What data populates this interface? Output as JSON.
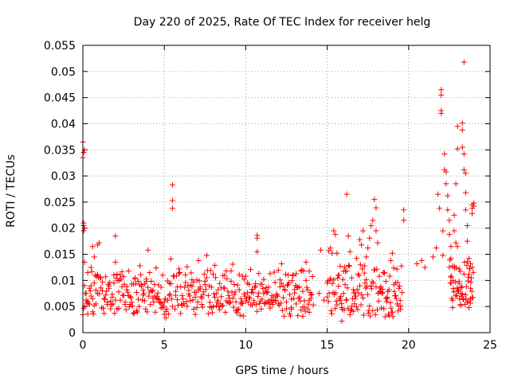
{
  "chart_data": {
    "type": "scatter",
    "title": "Day 220 of 2025, Rate Of TEC Index for receiver helg",
    "xlabel": "GPS time / hours",
    "ylabel": "ROTI / TECUs",
    "xlim": [
      0,
      25
    ],
    "ylim": [
      0,
      0.055
    ],
    "xticks": [
      0,
      5,
      10,
      15,
      20,
      25
    ],
    "xtick_labels": [
      "0",
      "5",
      "10",
      "15",
      "20",
      "25"
    ],
    "yticks": [
      0,
      0.005,
      0.01,
      0.015,
      0.02,
      0.025,
      0.03,
      0.035,
      0.04,
      0.045,
      0.05,
      0.055
    ],
    "ytick_labels": [
      "0",
      "0.005",
      "0.01",
      "0.015",
      "0.02",
      "0.025",
      "0.03",
      "0.035",
      "0.04",
      "0.045",
      "0.05",
      "0.055"
    ],
    "grid": true,
    "marker": "+",
    "color": "#ff0000",
    "series": [
      {
        "name": "ROTI",
        "points": [
          [
            0.0,
            0.0335
          ],
          [
            0.0,
            0.0365
          ],
          [
            0.05,
            0.0345
          ],
          [
            0.1,
            0.035
          ],
          [
            0.05,
            0.021
          ],
          [
            0.05,
            0.0205
          ],
          [
            0.1,
            0.02
          ],
          [
            0.05,
            0.0195
          ],
          [
            0.1,
            0.0135
          ],
          [
            0.1,
            0.009
          ],
          [
            0.2,
            0.0075
          ],
          [
            0.3,
            0.006
          ],
          [
            0.4,
            0.0085
          ],
          [
            0.5,
            0.007
          ],
          [
            0.6,
            0.0065
          ],
          [
            0.7,
            0.0095
          ],
          [
            0.8,
            0.0055
          ],
          [
            0.9,
            0.0075
          ],
          [
            0.3,
            0.0115
          ],
          [
            0.5,
            0.0125
          ],
          [
            0.6,
            0.0165
          ],
          [
            0.7,
            0.0145
          ],
          [
            0.9,
            0.0168
          ],
          [
            1.0,
            0.0172
          ],
          [
            1.1,
            0.0105
          ],
          [
            1.2,
            0.008
          ],
          [
            1.3,
            0.0065
          ],
          [
            1.4,
            0.0072
          ],
          [
            1.5,
            0.0058
          ],
          [
            1.6,
            0.0085
          ],
          [
            1.7,
            0.006
          ],
          [
            1.8,
            0.0068
          ],
          [
            1.9,
            0.0095
          ],
          [
            2.0,
            0.0185
          ],
          [
            2.0,
            0.0135
          ],
          [
            2.1,
            0.0112
          ],
          [
            2.2,
            0.0078
          ],
          [
            2.3,
            0.0062
          ],
          [
            2.4,
            0.0088
          ],
          [
            2.5,
            0.0071
          ],
          [
            2.6,
            0.0054
          ],
          [
            2.7,
            0.0082
          ],
          [
            2.8,
            0.0118
          ],
          [
            2.9,
            0.0069
          ],
          [
            3.0,
            0.0058
          ],
          [
            3.1,
            0.0093
          ],
          [
            3.2,
            0.0105
          ],
          [
            3.3,
            0.0077
          ],
          [
            3.4,
            0.0064
          ],
          [
            3.5,
            0.0128
          ],
          [
            3.6,
            0.0089
          ],
          [
            3.7,
            0.0072
          ],
          [
            3.8,
            0.0061
          ],
          [
            3.9,
            0.0098
          ],
          [
            4.0,
            0.0158
          ],
          [
            4.1,
            0.0115
          ],
          [
            4.2,
            0.0081
          ],
          [
            4.3,
            0.0066
          ],
          [
            4.4,
            0.0092
          ],
          [
            4.5,
            0.0124
          ],
          [
            4.6,
            0.0076
          ],
          [
            4.7,
            0.0059
          ],
          [
            4.8,
            0.0087
          ],
          [
            4.9,
            0.0048
          ],
          [
            5.0,
            0.0035
          ],
          [
            5.1,
            0.0028
          ],
          [
            5.2,
            0.0062
          ],
          [
            5.3,
            0.0095
          ],
          [
            5.4,
            0.0141
          ],
          [
            5.5,
            0.0283
          ],
          [
            5.5,
            0.0253
          ],
          [
            5.5,
            0.0238
          ],
          [
            5.6,
            0.0108
          ],
          [
            5.7,
            0.0079
          ],
          [
            5.8,
            0.0063
          ],
          [
            5.9,
            0.0122
          ],
          [
            6.0,
            0.0088
          ],
          [
            6.1,
            0.0071
          ],
          [
            6.2,
            0.0055
          ],
          [
            6.3,
            0.0096
          ],
          [
            6.4,
            0.0126
          ],
          [
            6.5,
            0.0074
          ],
          [
            6.6,
            0.0061
          ],
          [
            6.7,
            0.0089
          ],
          [
            6.8,
            0.0045
          ],
          [
            6.9,
            0.0068
          ],
          [
            7.0,
            0.0101
          ],
          [
            7.1,
            0.0138
          ],
          [
            7.2,
            0.0084
          ],
          [
            7.3,
            0.0066
          ],
          [
            7.4,
            0.0078
          ],
          [
            7.5,
            0.0092
          ],
          [
            7.6,
            0.0148
          ],
          [
            7.7,
            0.0071
          ],
          [
            7.8,
            0.0058
          ],
          [
            7.9,
            0.0087
          ],
          [
            8.0,
            0.0112
          ],
          [
            8.1,
            0.0129
          ],
          [
            8.2,
            0.0075
          ],
          [
            8.3,
            0.0062
          ],
          [
            8.4,
            0.0094
          ],
          [
            8.5,
            0.0069
          ],
          [
            8.6,
            0.0052
          ],
          [
            8.7,
            0.0085
          ],
          [
            8.8,
            0.0118
          ],
          [
            8.9,
            0.0079
          ],
          [
            9.0,
            0.0066
          ],
          [
            9.1,
            0.0098
          ],
          [
            9.2,
            0.0131
          ],
          [
            9.3,
            0.0073
          ],
          [
            9.4,
            0.0059
          ],
          [
            9.5,
            0.0091
          ],
          [
            9.6,
            0.0082
          ],
          [
            9.7,
            0.0065
          ],
          [
            9.8,
            0.0108
          ],
          [
            9.9,
            0.0074
          ],
          [
            10.0,
            0.0061
          ],
          [
            10.1,
            0.0095
          ],
          [
            10.2,
            0.0068
          ],
          [
            10.3,
            0.0121
          ],
          [
            10.4,
            0.0083
          ],
          [
            10.5,
            0.0057
          ],
          [
            10.6,
            0.0089
          ],
          [
            10.7,
            0.0186
          ],
          [
            10.7,
            0.0181
          ],
          [
            10.7,
            0.0155
          ],
          [
            10.8,
            0.0076
          ],
          [
            10.9,
            0.0093
          ],
          [
            11.0,
            0.0064
          ],
          [
            11.1,
            0.0102
          ],
          [
            11.2,
            0.0079
          ],
          [
            11.3,
            0.0058
          ],
          [
            11.4,
            0.0087
          ],
          [
            11.5,
            0.0113
          ],
          [
            11.6,
            0.0071
          ],
          [
            11.7,
            0.0062
          ],
          [
            11.8,
            0.0096
          ],
          [
            11.9,
            0.0074
          ],
          [
            12.0,
            0.0056
          ],
          [
            12.1,
            0.0088
          ],
          [
            12.2,
            0.0132
          ],
          [
            12.3,
            0.0067
          ],
          [
            12.4,
            0.0081
          ],
          [
            12.5,
            0.0059
          ],
          [
            12.6,
            0.0092
          ],
          [
            12.7,
            0.0073
          ],
          [
            12.8,
            0.0064
          ],
          [
            12.9,
            0.0109
          ],
          [
            13.0,
            0.0076
          ],
          [
            13.1,
            0.0055
          ],
          [
            13.2,
            0.0086
          ],
          [
            13.3,
            0.0068
          ],
          [
            13.4,
            0.0118
          ],
          [
            13.5,
            0.0079
          ],
          [
            13.6,
            0.0061
          ],
          [
            13.7,
            0.0135
          ],
          [
            13.8,
            0.0082
          ],
          [
            13.9,
            0.0062
          ],
          [
            14.0,
            0.0072
          ],
          [
            13.5,
            0.0049
          ],
          [
            13.9,
            0.0039
          ],
          [
            12.8,
            0.0045
          ],
          [
            14.5,
            0.0075
          ],
          [
            14.6,
            0.0158
          ],
          [
            14.8,
            0.0062
          ],
          [
            15.0,
            0.0095
          ],
          [
            15.1,
            0.0157
          ],
          [
            15.2,
            0.0162
          ],
          [
            15.3,
            0.0152
          ],
          [
            15.4,
            0.0195
          ],
          [
            15.5,
            0.0188
          ],
          [
            15.6,
            0.0152
          ],
          [
            15.7,
            0.0089
          ],
          [
            15.8,
            0.0062
          ],
          [
            15.9,
            0.0048
          ],
          [
            15.9,
            0.0022
          ],
          [
            16.0,
            0.0075
          ],
          [
            16.1,
            0.0092
          ],
          [
            16.2,
            0.0118
          ],
          [
            16.2,
            0.0265
          ],
          [
            16.3,
            0.0185
          ],
          [
            16.4,
            0.0155
          ],
          [
            16.5,
            0.0105
          ],
          [
            16.6,
            0.0082
          ],
          [
            16.7,
            0.0065
          ],
          [
            16.8,
            0.0142
          ],
          [
            16.9,
            0.0112
          ],
          [
            17.0,
            0.0178
          ],
          [
            17.1,
            0.0168
          ],
          [
            17.2,
            0.0195
          ],
          [
            17.3,
            0.0128
          ],
          [
            17.4,
            0.0145
          ],
          [
            17.5,
            0.0162
          ],
          [
            17.6,
            0.0181
          ],
          [
            17.7,
            0.0205
          ],
          [
            17.8,
            0.0215
          ],
          [
            17.9,
            0.0255
          ],
          [
            18.0,
            0.0239
          ],
          [
            18.0,
            0.0195
          ],
          [
            18.1,
            0.0172
          ],
          [
            18.2,
            0.0108
          ],
          [
            18.3,
            0.0088
          ],
          [
            18.4,
            0.0075
          ],
          [
            18.5,
            0.0115
          ],
          [
            18.6,
            0.0098
          ],
          [
            18.7,
            0.0065
          ],
          [
            18.8,
            0.0082
          ],
          [
            18.9,
            0.0138
          ],
          [
            19.0,
            0.0152
          ],
          [
            19.1,
            0.0092
          ],
          [
            19.2,
            0.0071
          ],
          [
            19.3,
            0.0055
          ],
          [
            19.4,
            0.0085
          ],
          [
            19.5,
            0.0045
          ],
          [
            19.7,
            0.0235
          ],
          [
            19.7,
            0.0215
          ],
          [
            20.5,
            0.0132
          ],
          [
            20.8,
            0.0138
          ],
          [
            21.0,
            0.0125
          ],
          [
            21.5,
            0.0145
          ],
          [
            21.7,
            0.0162
          ],
          [
            21.8,
            0.0265
          ],
          [
            21.9,
            0.0238
          ],
          [
            22.0,
            0.0465
          ],
          [
            22.0,
            0.0455
          ],
          [
            22.0,
            0.0425
          ],
          [
            22.0,
            0.042
          ],
          [
            22.1,
            0.0195
          ],
          [
            22.1,
            0.0148
          ],
          [
            22.2,
            0.0342
          ],
          [
            22.2,
            0.0312
          ],
          [
            22.3,
            0.0308
          ],
          [
            22.3,
            0.0285
          ],
          [
            22.4,
            0.0262
          ],
          [
            22.4,
            0.0235
          ],
          [
            22.5,
            0.0215
          ],
          [
            22.5,
            0.0188
          ],
          [
            22.6,
            0.0165
          ],
          [
            22.6,
            0.0142
          ],
          [
            22.6,
            0.0095
          ],
          [
            22.7,
            0.0062
          ],
          [
            22.7,
            0.0048
          ],
          [
            22.8,
            0.0225
          ],
          [
            22.8,
            0.0195
          ],
          [
            22.9,
            0.0172
          ],
          [
            22.9,
            0.0285
          ],
          [
            23.0,
            0.0395
          ],
          [
            23.0,
            0.0352
          ],
          [
            23.0,
            0.0165
          ],
          [
            23.1,
            0.0122
          ],
          [
            23.1,
            0.0098
          ],
          [
            23.2,
            0.0075
          ],
          [
            23.2,
            0.0052
          ],
          [
            23.3,
            0.0401
          ],
          [
            23.3,
            0.0388
          ],
          [
            23.3,
            0.0355
          ],
          [
            23.4,
            0.0518
          ],
          [
            23.4,
            0.0342
          ],
          [
            23.4,
            0.0312
          ],
          [
            23.5,
            0.0305
          ],
          [
            23.5,
            0.0268
          ],
          [
            23.5,
            0.0235
          ],
          [
            23.6,
            0.0205
          ],
          [
            23.6,
            0.0175
          ],
          [
            23.7,
            0.0142
          ],
          [
            23.7,
            0.0112
          ],
          [
            23.8,
            0.0085
          ],
          [
            23.8,
            0.0065
          ],
          [
            23.9,
            0.0245
          ],
          [
            23.9,
            0.0238
          ],
          [
            23.9,
            0.0228
          ],
          [
            24.0,
            0.0248
          ],
          [
            24.0,
            0.0242
          ],
          [
            23.7,
            0.0048
          ],
          [
            23.6,
            0.0058
          ],
          [
            23.8,
            0.0132
          ],
          [
            23.9,
            0.0125
          ]
        ],
        "dense_band": {
          "segments": [
            {
              "x_range": [
                0.0,
                14.2
              ],
              "y_range": [
                0.003,
                0.012
              ],
              "step": 0.05
            },
            {
              "x_range": [
                15.0,
                19.6
              ],
              "y_range": [
                0.003,
                0.013
              ],
              "step": 0.04
            },
            {
              "x_range": [
                22.5,
                24.0
              ],
              "y_range": [
                0.005,
                0.014
              ],
              "step": 0.03
            }
          ]
        }
      }
    ]
  }
}
